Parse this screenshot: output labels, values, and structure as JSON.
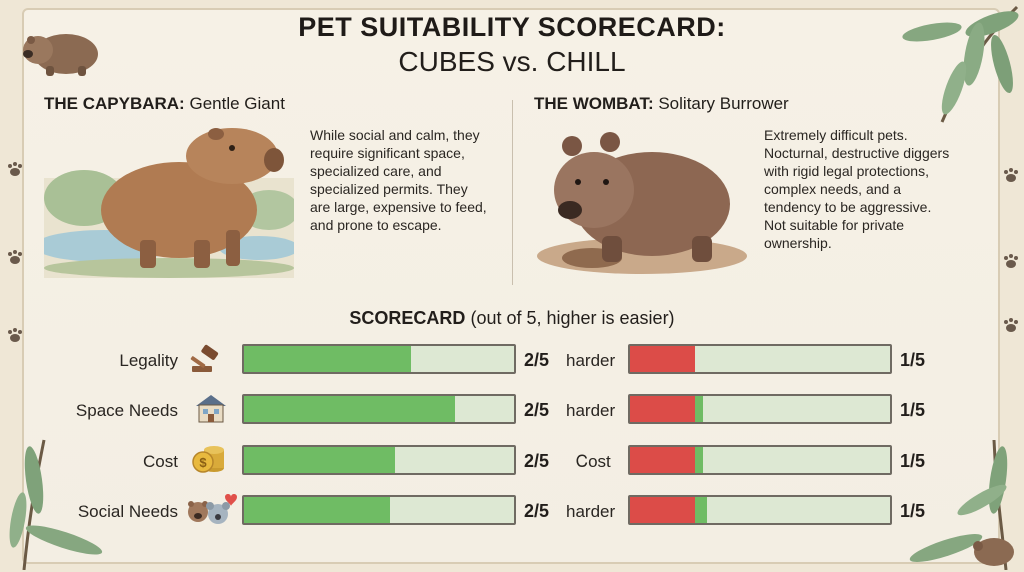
{
  "header": {
    "title": "PET SUITABILITY SCORECARD:",
    "subtitle": "CUBES vs. CHILL"
  },
  "capybara": {
    "name": "THE CAPYBARA:",
    "tagline": "Gentle Giant",
    "description": [
      "While social and calm, they",
      "require significant space,",
      "specialized care, and",
      "specialized permits. They",
      "are large, expensive to feed,",
      "and prone to escape."
    ]
  },
  "wombat": {
    "name": "THE WOMBAT:",
    "tagline": "Solitary Burrower",
    "description": [
      "Extremely difficult pets.",
      "Nocturnal, destructive diggers",
      "with rigid legal protections,",
      "complex needs, and a",
      "tendency to be aggressive.",
      "Not suitable for private",
      "ownership."
    ]
  },
  "scorecard": {
    "title": "SCORECARD",
    "note": "(out of 5, higher is easier)",
    "rows": [
      {
        "label": "Legality",
        "icon": "gavel-icon",
        "capybara_score": "2/5",
        "capybara_fill": 0.62,
        "middle": "harder",
        "wombat_score": "1/5",
        "wombat_fill": 0.25
      },
      {
        "label": "Space Needs",
        "icon": "house-icon",
        "capybara_score": "2/5",
        "capybara_fill": 0.78,
        "middle": "harder",
        "wombat_score": "1/5",
        "wombat_fill": 0.25
      },
      {
        "label": "Cost",
        "icon": "coins-icon",
        "capybara_score": "2/5",
        "capybara_fill": 0.56,
        "middle": "Ꮯost",
        "wombat_score": "1/5",
        "wombat_fill": 0.25
      },
      {
        "label": "Social Needs",
        "icon": "animal-faces-heart-icon",
        "capybara_score": "2/5",
        "capybara_fill": 0.54,
        "middle": "harder",
        "wombat_score": "1/5",
        "wombat_fill": 0.25
      }
    ]
  },
  "colors": {
    "capybara_bar": "#6fbc64",
    "wombat_bar": "#dc4c48",
    "bar_track": "#dde8d3"
  }
}
